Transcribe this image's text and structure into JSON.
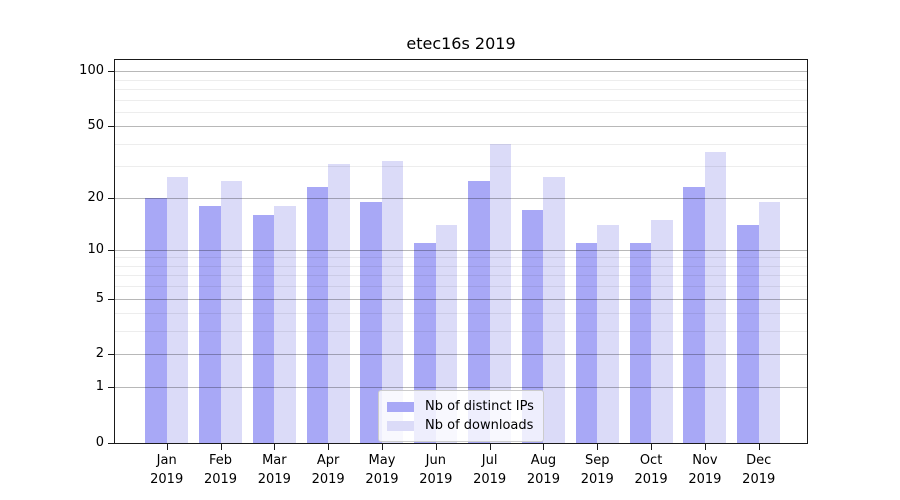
{
  "title": "etec16s 2019",
  "chart_data": {
    "type": "bar",
    "title": "etec16s 2019",
    "categories": [
      "Jan",
      "Feb",
      "Mar",
      "Apr",
      "May",
      "Jun",
      "Jul",
      "Aug",
      "Sep",
      "Oct",
      "Nov",
      "Dec"
    ],
    "year": "2019",
    "series": [
      {
        "name": "Nb of distinct IPs",
        "color": "#a8a8f6",
        "values": [
          20,
          18,
          16,
          23,
          19,
          11,
          25,
          17,
          11,
          11,
          23,
          14
        ]
      },
      {
        "name": "Nb of downloads",
        "color": "#dbdbf8",
        "values": [
          26,
          25,
          18,
          31,
          32,
          14,
          40,
          26,
          14,
          15,
          36,
          19
        ]
      }
    ],
    "yscale": "log1p",
    "ylim": [
      0,
      115
    ],
    "yticks": [
      0,
      1,
      2,
      5,
      10,
      20,
      50,
      100
    ],
    "yticks_minor": [
      3,
      4,
      6,
      7,
      8,
      9,
      30,
      40,
      60,
      70,
      80,
      90
    ],
    "grid": true,
    "legend_position": "lower center"
  },
  "colors": {
    "ips_bar": "#a8a8f6",
    "downloads_bar": "#dbdbf8",
    "spine": "#1a1a1a",
    "grid_major": "rgba(0,0,0,0.28)",
    "grid_minor": "rgba(0,0,0,0.07)",
    "legend_border": "#cccccc"
  }
}
